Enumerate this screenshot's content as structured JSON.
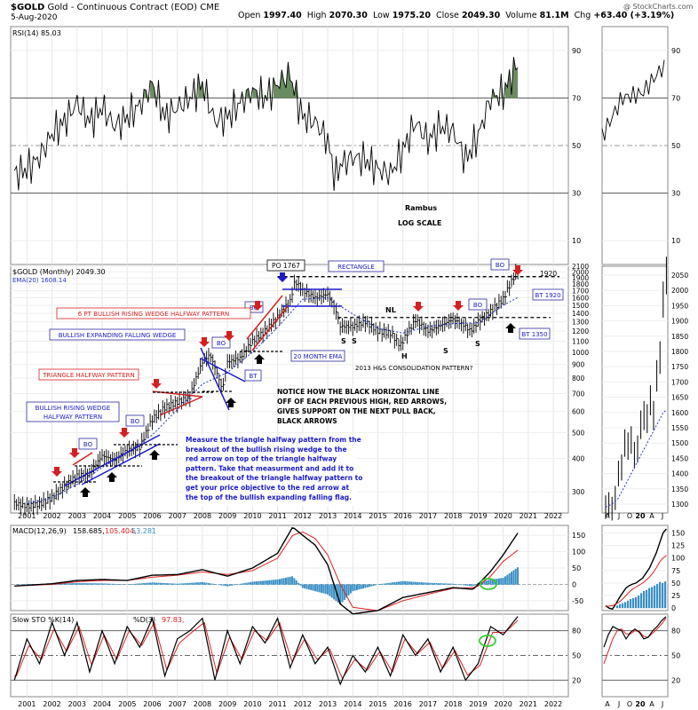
{
  "header": {
    "ticker": "$GOLD",
    "name": "Gold - Continuous Contract (EOD)",
    "exchange": "CME",
    "date": "5-Aug-2020",
    "open_label": "Open",
    "open": "1997.40",
    "high_label": "High",
    "high": "2070.30",
    "low_label": "Low",
    "low": "1975.20",
    "close_label": "Close",
    "close": "2049.30",
    "volume_label": "Volume",
    "volume": "81.1M",
    "chg_label": "Chg",
    "chg": "+63.40 (+3.19%)",
    "watermark": "@ StockCharts.com"
  },
  "rsi": {
    "label": "RSI(14) 85.03",
    "ticks": [
      90,
      70,
      50,
      30,
      10
    ]
  },
  "price": {
    "label": "$GOLD (Monthly) 2049.30",
    "ema_label": "EMA(20) 1608.14",
    "ticks": [
      2100,
      2000,
      1900,
      1800,
      1700,
      1600,
      1500,
      1400,
      1300,
      1200,
      1100,
      1000,
      900,
      800,
      700,
      600,
      500,
      400,
      300
    ],
    "mini_ticks": [
      2050,
      2000,
      1950,
      1900,
      1850,
      1800,
      1750,
      1700,
      1650,
      1600,
      1550,
      1500,
      1450,
      1400,
      1350,
      1300
    ]
  },
  "macd": {
    "label": "MACD(12,26,9) 158.685, 105.404, 53.281",
    "ticks": [
      150,
      100,
      50,
      0,
      -50
    ],
    "mini_ticks": [
      150,
      125,
      100,
      75,
      50,
      25,
      0
    ]
  },
  "sto": {
    "label": "Slow STO %K(14) %D(3) 97.83, 95.22",
    "ticks": [
      80,
      50,
      20
    ]
  },
  "x_years": [
    "2001",
    "2002",
    "2003",
    "2004",
    "2005",
    "2006",
    "2007",
    "2008",
    "2009",
    "2010",
    "2011",
    "2012",
    "2013",
    "2014",
    "2015",
    "2016",
    "2017",
    "2018",
    "2019",
    "2020",
    "2021",
    "2022"
  ],
  "mini_x": [
    "A",
    "J",
    "O",
    "20",
    "A",
    "J"
  ],
  "annotations": {
    "rambus": "Rambus",
    "log_scale": "LOG SCALE",
    "po": "PO 1767",
    "rectangle": "RECTANGLE",
    "nl": "NL",
    "s": "S",
    "h": "H",
    "hs": "2013 H&S CONSOLIDATION PATTERN?",
    "bo": "BO",
    "bt": "BT",
    "bt1920": "BT 1920",
    "bt1350": "BT 1350",
    "lvl1920": "1920",
    "ema20": "20 MONTH EMA",
    "six_pt": "6 PT BULLISH RISING WEDGE HALFWAY PATTERN",
    "bef": "BULLISH EXPANDING FALLING WEDGE",
    "tri": "TRIANGLE HALFWAY PATTERN",
    "brw1": "BULLISH RISING WEDGE",
    "brw2": "HALFWAY PATTERN",
    "notice": [
      "NOTICE HOW THE  BLACK HORIZONTAL  LINE",
      "OFF OF EACH PREVIOUS HIGH, RED ARROWS,",
      "GIVES SUPPORT ON THE NEXT PULL BACK,",
      "BLACK ARROWS"
    ],
    "measure": [
      "Measure the triangle halfway pattern from the",
      "breakout of the bullish rising wedge to the",
      "red arrow on top of the triangle halfway",
      "pattern. Take that measurment and add it to",
      "the breakout of the triangle halfway pattern to",
      "get your price objective to the red arrow at",
      "the top of the bullish expanding falling flag."
    ]
  },
  "colors": {
    "ema": "#2233cc",
    "signal": "#e02020",
    "hist": "#3a8fc4",
    "rsi_fill": "#6a8c60",
    "annot_red": "#d42020",
    "annot_blue": "#1a1acc",
    "bo_border": "#2a2aa0",
    "circle": "#33cc33"
  },
  "chart_data": [
    {
      "type": "line",
      "name": "RSI(14)",
      "x": [
        2000.5,
        2001.0,
        2001.5,
        2002.0,
        2002.5,
        2003.0,
        2003.5,
        2004.0,
        2004.5,
        2005.0,
        2005.5,
        2006.0,
        2006.5,
        2007.0,
        2007.5,
        2008.0,
        2008.5,
        2009.0,
        2009.5,
        2010.0,
        2010.5,
        2011.0,
        2011.5,
        2011.7,
        2012.0,
        2012.5,
        2013.0,
        2013.3,
        2013.5,
        2014.0,
        2014.5,
        2015.0,
        2015.5,
        2016.0,
        2016.5,
        2017.0,
        2017.5,
        2018.0,
        2018.5,
        2019.0,
        2019.5,
        2020.0,
        2020.6
      ],
      "values": [
        38,
        40,
        45,
        55,
        60,
        68,
        60,
        66,
        58,
        62,
        67,
        76,
        62,
        66,
        70,
        76,
        60,
        62,
        68,
        73,
        70,
        76,
        80,
        72,
        62,
        60,
        52,
        36,
        42,
        45,
        44,
        40,
        38,
        48,
        60,
        52,
        58,
        56,
        44,
        54,
        70,
        72,
        85
      ],
      "ylim": [
        0,
        100
      ],
      "reference_lines": [
        70,
        30
      ]
    },
    {
      "type": "line",
      "name": "$GOLD (Monthly)",
      "scale": "log",
      "x": [
        2000.5,
        2001.0,
        2001.5,
        2002.0,
        2002.5,
        2003.0,
        2003.5,
        2004.0,
        2004.5,
        2005.0,
        2005.5,
        2006.0,
        2006.5,
        2007.0,
        2007.5,
        2008.0,
        2008.3,
        2008.8,
        2009.0,
        2009.5,
        2010.0,
        2010.5,
        2011.0,
        2011.5,
        2011.7,
        2012.0,
        2012.5,
        2013.0,
        2013.3,
        2013.5,
        2014.0,
        2014.5,
        2015.0,
        2015.5,
        2015.9,
        2016.5,
        2017.0,
        2017.5,
        2018.0,
        2018.5,
        2018.7,
        2019.0,
        2019.5,
        2020.0,
        2020.6
      ],
      "values": [
        272,
        265,
        270,
        285,
        315,
        345,
        350,
        410,
        395,
        430,
        440,
        560,
        620,
        650,
        680,
        920,
        980,
        720,
        920,
        950,
        1100,
        1200,
        1350,
        1550,
        1850,
        1700,
        1600,
        1650,
        1450,
        1250,
        1250,
        1300,
        1200,
        1180,
        1060,
        1320,
        1200,
        1260,
        1330,
        1250,
        1200,
        1300,
        1420,
        1580,
        2049
      ],
      "ema20": {
        "x": [
          2001,
          2002,
          2003,
          2004,
          2005,
          2006,
          2007,
          2008,
          2009,
          2010,
          2011,
          2012,
          2013,
          2014,
          2015,
          2016,
          2017,
          2018,
          2019,
          2020,
          2020.6
        ],
        "values": [
          270,
          285,
          320,
          370,
          420,
          490,
          610,
          760,
          840,
          1000,
          1240,
          1580,
          1600,
          1390,
          1230,
          1180,
          1250,
          1280,
          1290,
          1500,
          1608
        ]
      },
      "ylim": [
        250,
        2100
      ],
      "reference_levels": [
        1920,
        1350
      ]
    },
    {
      "type": "line",
      "name": "MACD(12,26,9)",
      "series": [
        {
          "name": "MACD",
          "x": [
            2000.5,
            2002,
            2003,
            2004,
            2005,
            2006,
            2007,
            2008,
            2009,
            2010,
            2011,
            2011.6,
            2012,
            2012.5,
            2013,
            2013.5,
            2014,
            2015,
            2016,
            2017,
            2018,
            2018.8,
            2019,
            2019.5,
            2020,
            2020.6
          ],
          "values": [
            -5,
            2,
            12,
            15,
            12,
            28,
            30,
            45,
            25,
            50,
            95,
            175,
            150,
            120,
            60,
            -60,
            -90,
            -80,
            -40,
            -25,
            -10,
            -15,
            0,
            40,
            90,
            158.685
          ]
        },
        {
          "name": "Signal",
          "x": [
            2000.5,
            2002,
            2003,
            2004,
            2005,
            2006,
            2007,
            2008,
            2009,
            2010,
            2011,
            2011.6,
            2012,
            2012.5,
            2013,
            2013.5,
            2014,
            2015,
            2016,
            2017,
            2018,
            2018.8,
            2019,
            2019.5,
            2020,
            2020.6
          ],
          "values": [
            -5,
            0,
            8,
            12,
            12,
            22,
            28,
            38,
            30,
            42,
            80,
            150,
            160,
            140,
            90,
            0,
            -70,
            -80,
            -50,
            -30,
            -12,
            -10,
            -5,
            25,
            70,
            105.404
          ]
        }
      ],
      "ylim": [
        -80,
        180
      ]
    },
    {
      "type": "line",
      "name": "Slow STO %K(14) %D(3)",
      "series": [
        {
          "name": "%K",
          "x": [
            2000.5,
            2001,
            2001.5,
            2002,
            2002.5,
            2003,
            2003.5,
            2004,
            2004.5,
            2005,
            2005.5,
            2006,
            2006.5,
            2007,
            2007.5,
            2008,
            2008.5,
            2009,
            2009.5,
            2010,
            2010.5,
            2011,
            2011.5,
            2012,
            2012.5,
            2013,
            2013.5,
            2014,
            2014.5,
            2015,
            2015.5,
            2016,
            2016.5,
            2017,
            2017.5,
            2018,
            2018.5,
            2019,
            2019.5,
            2020,
            2020.6
          ],
          "values": [
            20,
            70,
            40,
            90,
            50,
            90,
            30,
            80,
            40,
            85,
            60,
            95,
            25,
            70,
            80,
            95,
            20,
            80,
            40,
            85,
            65,
            95,
            35,
            75,
            40,
            60,
            15,
            50,
            30,
            60,
            25,
            75,
            50,
            70,
            30,
            60,
            20,
            40,
            85,
            75,
            97.83
          ]
        },
        {
          "name": "%D",
          "x": [
            2000.5,
            2001,
            2001.5,
            2002,
            2002.5,
            2003,
            2003.5,
            2004,
            2004.5,
            2005,
            2005.5,
            2006,
            2006.5,
            2007,
            2007.5,
            2008,
            2008.5,
            2009,
            2009.5,
            2010,
            2010.5,
            2011,
            2011.5,
            2012,
            2012.5,
            2013,
            2013.5,
            2014,
            2014.5,
            2015,
            2015.5,
            2016,
            2016.5,
            2017,
            2017.5,
            2018,
            2018.5,
            2019,
            2019.5,
            2020,
            2020.6
          ],
          "values": [
            25,
            62,
            45,
            82,
            55,
            85,
            38,
            75,
            45,
            80,
            62,
            90,
            32,
            65,
            78,
            90,
            28,
            72,
            45,
            80,
            68,
            90,
            42,
            70,
            45,
            58,
            22,
            45,
            32,
            55,
            30,
            70,
            52,
            66,
            34,
            56,
            26,
            38,
            78,
            78,
            95.22
          ]
        }
      ],
      "ylim": [
        0,
        100
      ],
      "reference_lines": [
        80,
        50,
        20
      ]
    }
  ]
}
